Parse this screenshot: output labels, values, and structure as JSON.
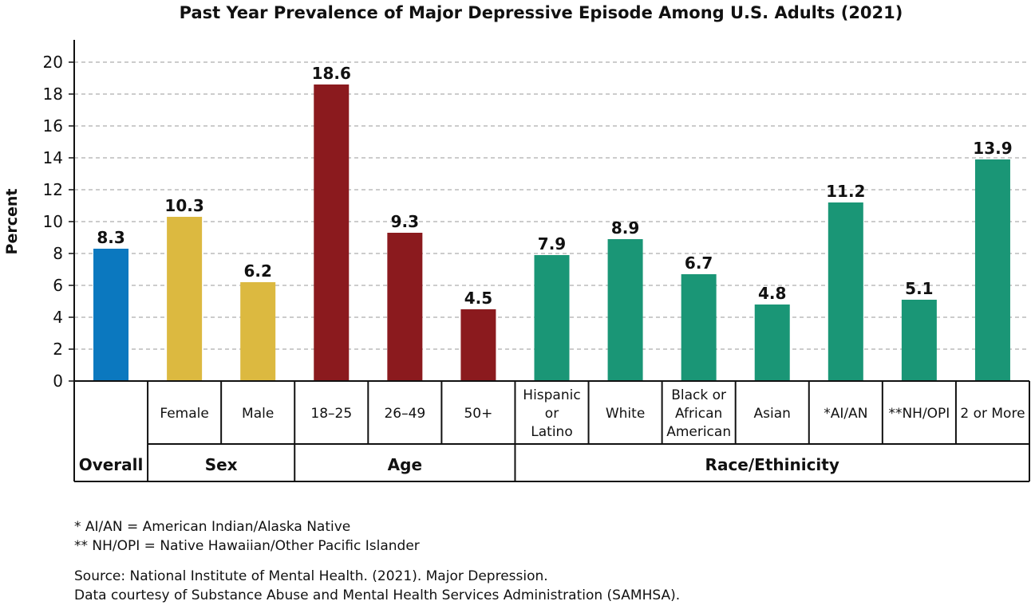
{
  "chart_data": {
    "type": "bar",
    "title": "Past Year Prevalence of Major Depressive Episode Among U.S. Adults (2021)",
    "ylabel": "Percent",
    "ylim": [
      0,
      20
    ],
    "yticks": [
      "0",
      "2",
      "4",
      "6",
      "8",
      "10",
      "12",
      "14",
      "16",
      "18",
      "20"
    ],
    "grid": true,
    "categories": [
      "Overall",
      "Female",
      "Male",
      "18–25",
      "26–49",
      "50+",
      "Hispanic or Latino",
      "White",
      "Black or African American",
      "Asian",
      "*AI/AN",
      "**NH/OPI",
      "2 or More"
    ],
    "category_lines": [
      [
        ""
      ],
      [
        "Female"
      ],
      [
        "Male"
      ],
      [
        "18–25"
      ],
      [
        "26–49"
      ],
      [
        "50+"
      ],
      [
        "Hispanic",
        "or",
        "Latino"
      ],
      [
        "White"
      ],
      [
        "Black or",
        "African",
        "American"
      ],
      [
        "Asian"
      ],
      [
        "*AI/AN"
      ],
      [
        "**NH/OPI"
      ],
      [
        "2 or More"
      ]
    ],
    "values": [
      8.3,
      10.3,
      6.2,
      18.6,
      9.3,
      4.5,
      7.9,
      8.9,
      6.7,
      4.8,
      11.2,
      5.1,
      13.9
    ],
    "value_labels": [
      "8.3",
      "10.3",
      "6.2",
      "18.6",
      "9.3",
      "4.5",
      "7.9",
      "8.9",
      "6.7",
      "4.8",
      "11.2",
      "5.1",
      "13.9"
    ],
    "groups": [
      {
        "label": "Overall",
        "count": 1,
        "color": "#0b78bf"
      },
      {
        "label": "Sex",
        "count": 2,
        "color": "#dcb940"
      },
      {
        "label": "Age",
        "count": 3,
        "color": "#8b1a1e"
      },
      {
        "label": "Race/Ethinicity",
        "count": 7,
        "color": "#1a9676"
      }
    ]
  },
  "notes": [
    "* AI/AN = American Indian/Alaska Native",
    "** NH/OPI = Native Hawaiian/Other Pacific Islander"
  ],
  "source": [
    "Source: National Institute of Mental Health. (2021). Major Depression.",
    "Data courtesy of Substance Abuse and Mental Health Services Administration (SAMHSA)."
  ]
}
